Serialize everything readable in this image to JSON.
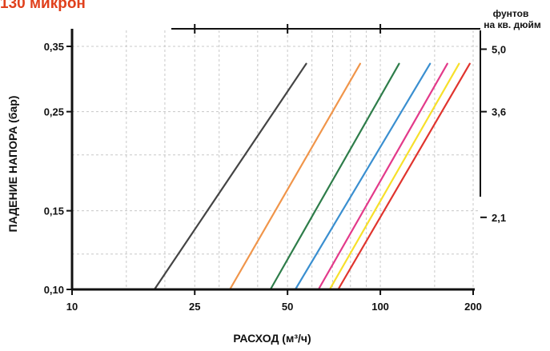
{
  "title": "130 микрон",
  "chart_data": {
    "type": "line",
    "xlabel": "РАСХОД (м³/ч)",
    "ylabel": "ПАДЕНИЕ НАПОРА (бар)",
    "y2label_line1": "фунтов",
    "y2label_line2": "на кв. дюйм",
    "x_scale": "log",
    "y_scale": "log",
    "xlim": [
      10,
      200
    ],
    "ylim": [
      0.1,
      0.35
    ],
    "x_ticks": [
      10,
      25,
      50,
      100,
      200
    ],
    "x_tick_labels": [
      "10",
      "25",
      "50",
      "100",
      "200"
    ],
    "x_grid": [
      15,
      20,
      30,
      40,
      60,
      70,
      80,
      90,
      150
    ],
    "y_ticks": [
      0.1,
      0.15,
      0.25,
      0.35
    ],
    "y_tick_labels": [
      "0,10",
      "0,15",
      "0,25",
      "0,35"
    ],
    "y_grid": [
      0.12,
      0.2
    ],
    "y2_ticks": [
      0.145,
      0.25,
      0.345
    ],
    "y2_tick_labels": [
      "2,1",
      "3,6",
      "5,0"
    ],
    "grid": true,
    "series": [
      {
        "color": "#444444",
        "x": [
          18.5,
          57.5
        ],
        "y": [
          0.1,
          0.32
        ]
      },
      {
        "color": "#f0954a",
        "x": [
          32.5,
          86
        ],
        "y": [
          0.1,
          0.32
        ]
      },
      {
        "color": "#2e7d4a",
        "x": [
          44,
          115
        ],
        "y": [
          0.1,
          0.32
        ]
      },
      {
        "color": "#3a8fd0",
        "x": [
          53,
          145
        ],
        "y": [
          0.1,
          0.32
        ]
      },
      {
        "color": "#e33a8a",
        "x": [
          63,
          165
        ],
        "y": [
          0.1,
          0.32
        ]
      },
      {
        "color": "#f7e02a",
        "x": [
          68.5,
          180
        ],
        "y": [
          0.1,
          0.32
        ]
      },
      {
        "color": "#e0342e",
        "x": [
          73,
          195
        ],
        "y": [
          0.1,
          0.32
        ]
      }
    ]
  }
}
